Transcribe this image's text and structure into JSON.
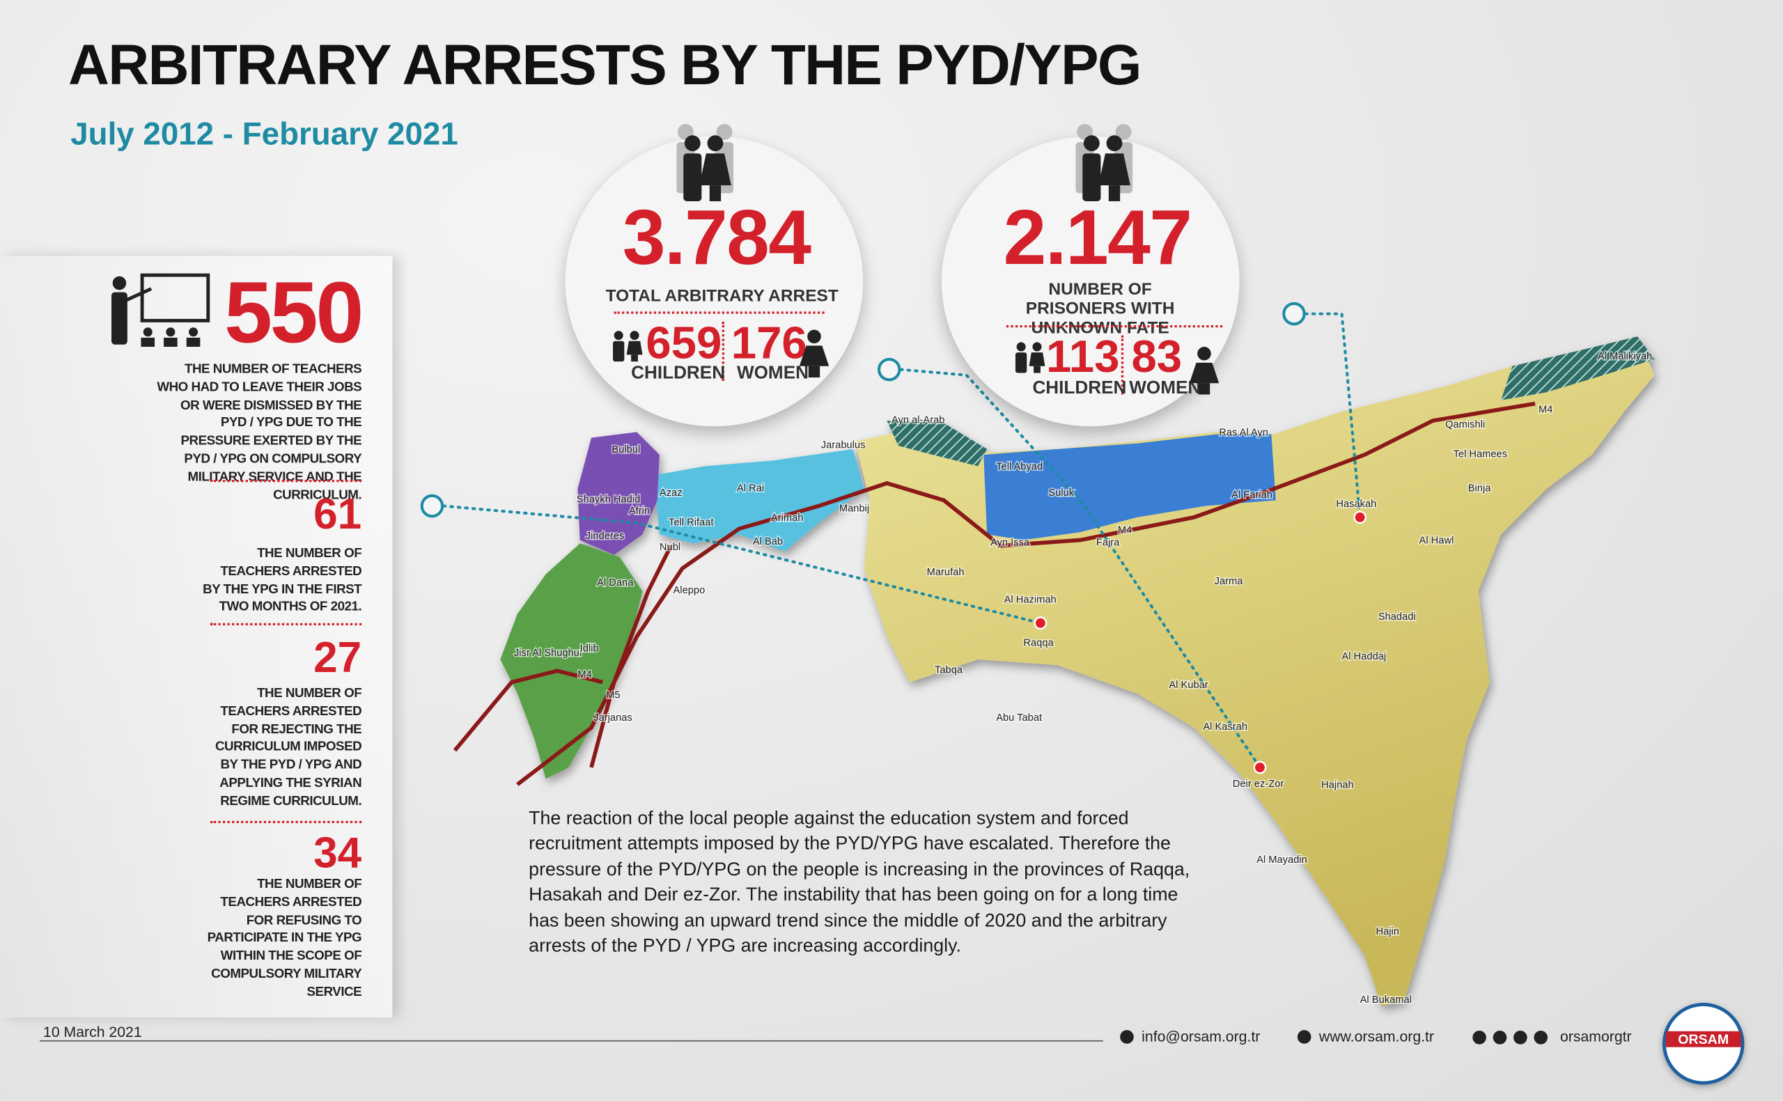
{
  "header": {
    "title": "ARBITRARY ARRESTS BY THE PYD/YPG",
    "subtitle": "July 2012 - February 2021"
  },
  "stats": {
    "total_arrests": {
      "value": "3.784",
      "label": "TOTAL ARBITRARY ARREST",
      "children": "659",
      "children_label": "CHILDREN",
      "women": "176",
      "women_label": "WOMEN"
    },
    "unknown_fate": {
      "value": "2.147",
      "label": "NUMBER OF PRISONERS WITH UNKNOWN FATE",
      "children": "113",
      "children_label": "CHILDREN",
      "women": "83",
      "women_label": "WOMEN"
    }
  },
  "teachers": [
    {
      "value": "550",
      "text": "THE NUMBER OF TEACHERS WHO HAD TO LEAVE THEIR JOBS OR WERE DISMISSED BY THE PYD / YPG DUE TO THE PRESSURE EXERTED BY THE PYD / YPG ON COMPULSORY MILITARY SERVICE AND THE CURRICULUM."
    },
    {
      "value": "61",
      "text": "THE NUMBER OF TEACHERS ARRESTED BY THE YPG IN THE FIRST TWO MONTHS OF 2021."
    },
    {
      "value": "27",
      "text": "THE NUMBER OF TEACHERS ARRESTED FOR REJECTING THE CURRICULUM IMPOSED BY THE PYD / YPG AND APPLYING THE SYRIAN REGIME CURRICULUM."
    },
    {
      "value": "34",
      "text": "THE NUMBER OF TEACHERS ARRESTED FOR REFUSING TO PARTICIPATE IN THE YPG WITHIN THE SCOPE OF COMPULSORY MILITARY SERVICE"
    }
  ],
  "paragraph": "The reaction of the local people against the education system and forced recruitment attempts imposed by the PYD/YPG have escalated. Therefore the pressure of the PYD/YPG on the people is increasing in the provinces of Raqqa, Hasakah and Deir ez-Zor. The instability that has been going on for a long time has been showing an upward trend since the middle of 2020 and the arbitrary arrests of the PYD / YPG are increasing accordingly.",
  "map_labels": [
    "Bulbul",
    "Azaz",
    "Shaykh Hadid",
    "Afrin",
    "Jinderes",
    "Tell Rifaat",
    "Nubl",
    "Al Dana",
    "Aleppo",
    "Jisr Al Shughur",
    "Idlib",
    "M4",
    "M5",
    "Jarjanas",
    "Al Rai",
    "Arimah",
    "Al Bab",
    "Jarabulus",
    "Manbij",
    "Ayn al-Arab",
    "Tell Abyad",
    "Suluk",
    "Ayn Issa",
    "M4",
    "Fajra",
    "Marufah",
    "Al Hazimah",
    "Raqqa",
    "Tabqa",
    "Abu Tabat",
    "Ras Al Ayn",
    "Al Fariah",
    "Qamishli",
    "M4",
    "Al Malikiyah",
    "Tel Hamees",
    "Binja",
    "Hasakah",
    "Al Hawl",
    "Jarma",
    "Shadadi",
    "Al Haddaj",
    "Al Kubar",
    "Al Kasrah",
    "Deir ez-Zor",
    "Hajnah",
    "Al Mayadin",
    "Hajin",
    "Al Bukamal"
  ],
  "footer": {
    "date": "10 March 2021",
    "email": "info@orsam.org.tr",
    "website": "www.orsam.org.tr",
    "social": "orsamorgtr",
    "logo": "ORSAM"
  }
}
